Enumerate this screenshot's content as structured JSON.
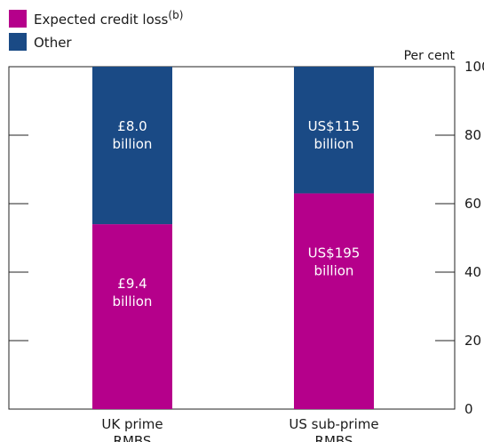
{
  "chart_data": {
    "type": "bar",
    "stacked": true,
    "categories": [
      "UK prime RMBS",
      "US sub-prime RMBS"
    ],
    "category_lines": [
      [
        "UK prime",
        "RMBS"
      ],
      [
        "US sub-prime",
        "RMBS"
      ]
    ],
    "series": [
      {
        "name": "Expected credit loss",
        "legend_label": "Expected credit loss",
        "legend_superscript": "(b)",
        "color": "#b5008b",
        "values": [
          54,
          63
        ],
        "bar_labels": [
          [
            "£9.4",
            "billion"
          ],
          [
            "US$195",
            "billion"
          ]
        ]
      },
      {
        "name": "Other",
        "legend_label": "Other",
        "color": "#1a4a85",
        "values": [
          46,
          37
        ],
        "bar_labels": [
          [
            "£8.0",
            "billion"
          ],
          [
            "US$115",
            "billion"
          ]
        ]
      }
    ],
    "ylabel": "Per cent",
    "ylim": [
      0,
      100
    ],
    "yticks": [
      0,
      20,
      40,
      60,
      80,
      100
    ],
    "legend_position": "top-left",
    "grid": false
  }
}
